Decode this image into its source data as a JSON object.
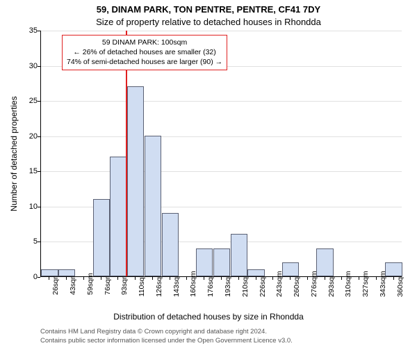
{
  "title_main": "59, DINAM PARK, TON PENTRE, PENTRE, CF41 7DY",
  "title_sub": "Size of property relative to detached houses in Rhondda",
  "ylabel": "Number of detached properties",
  "xlabel": "Distribution of detached houses by size in Rhondda",
  "chart": {
    "type": "histogram",
    "ylim": [
      0,
      35
    ],
    "ytick_step": 5,
    "bar_fill": "#d0ddf2",
    "bar_stroke": "#5a6073",
    "background_color": "#ffffff",
    "grid_color": "#e0e0e0",
    "categories": [
      "26sqm",
      "43sqm",
      "59sqm",
      "76sqm",
      "93sqm",
      "110sqm",
      "126sqm",
      "143sqm",
      "160sqm",
      "176sqm",
      "193sqm",
      "210sqm",
      "226sqm",
      "243sqm",
      "260sqm",
      "276sqm",
      "293sqm",
      "310sqm",
      "327sqm",
      "343sqm",
      "360sqm"
    ],
    "values": [
      1,
      1,
      0,
      11,
      17,
      27,
      20,
      9,
      0,
      4,
      4,
      6,
      1,
      0,
      2,
      0,
      4,
      0,
      0,
      0,
      2
    ],
    "marker_value_x": 100,
    "marker_color": "#e02020",
    "annotation": {
      "line1": "59 DINAM PARK: 100sqm",
      "line2": "← 26% of detached houses are smaller (32)",
      "line3": "74% of semi-detached houses are larger (90) →",
      "border_color": "#e02020"
    }
  },
  "footer_line1": "Contains HM Land Registry data © Crown copyright and database right 2024.",
  "footer_line2": "Contains public sector information licensed under the Open Government Licence v3.0."
}
